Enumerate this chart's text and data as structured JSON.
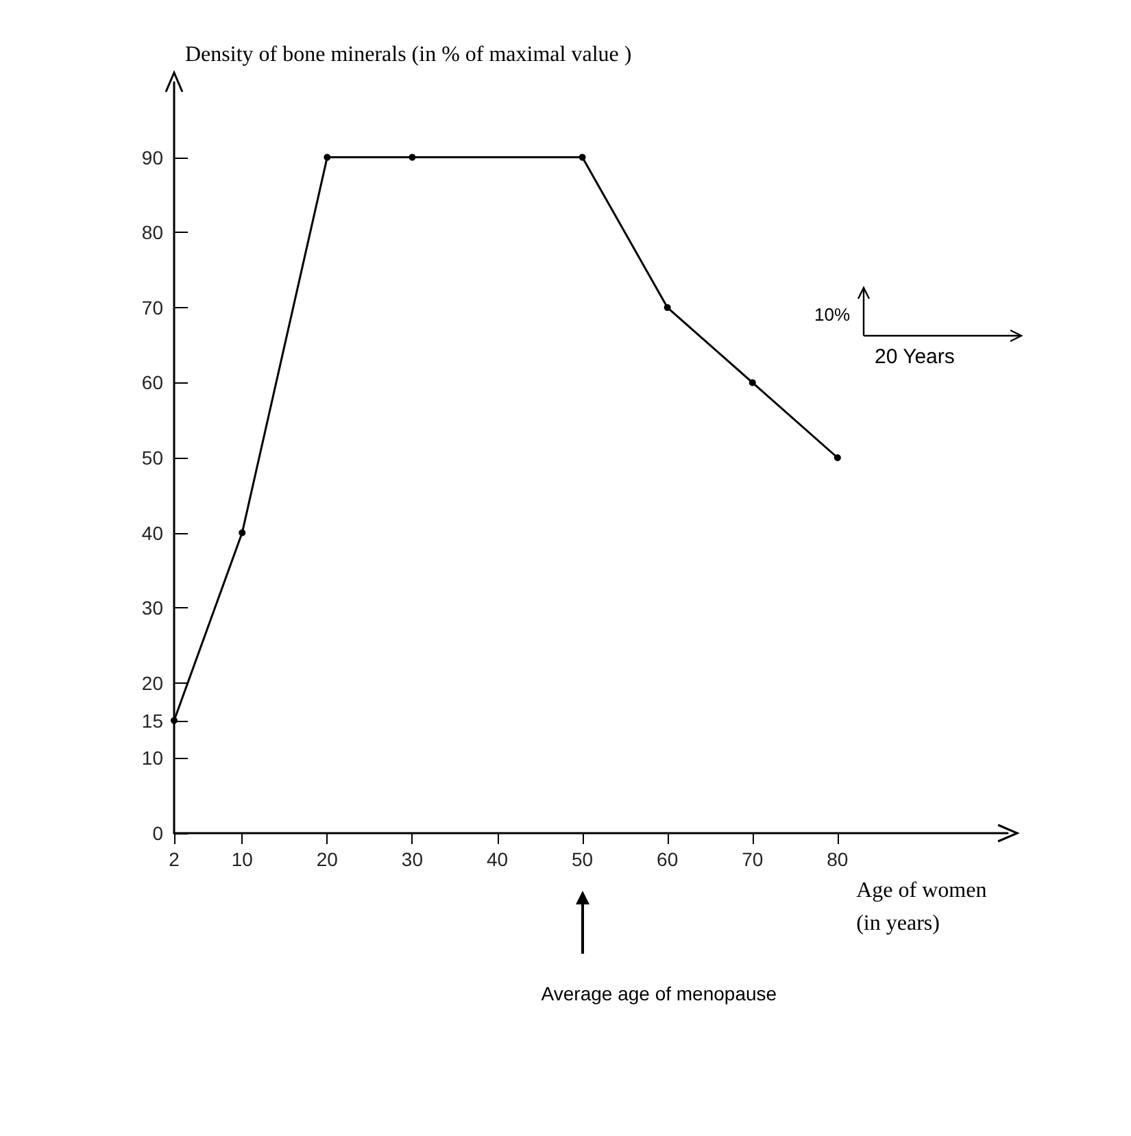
{
  "chart_data": {
    "type": "line",
    "ylabel": "Density of bone minerals (in % of maximal value )",
    "xlabel": "Age of women\n(in years)",
    "x": [
      2,
      10,
      20,
      30,
      50,
      60,
      70,
      80
    ],
    "series": [
      {
        "color": "#000000",
        "values": [
          15,
          40,
          90,
          90,
          90,
          70,
          60,
          50
        ]
      }
    ],
    "xlim": [
      2,
      100
    ],
    "xticks": [
      2,
      10,
      20,
      30,
      40,
      50,
      60,
      70,
      80
    ],
    "ylim": [
      0,
      100
    ],
    "yticks": [
      0,
      10,
      15,
      20,
      30,
      40,
      50,
      60,
      70,
      80,
      90
    ],
    "grid": false,
    "marker": "circle",
    "line_style": "solid",
    "annotations": [
      "Average age of menopause",
      "10%",
      "20 Years"
    ]
  }
}
